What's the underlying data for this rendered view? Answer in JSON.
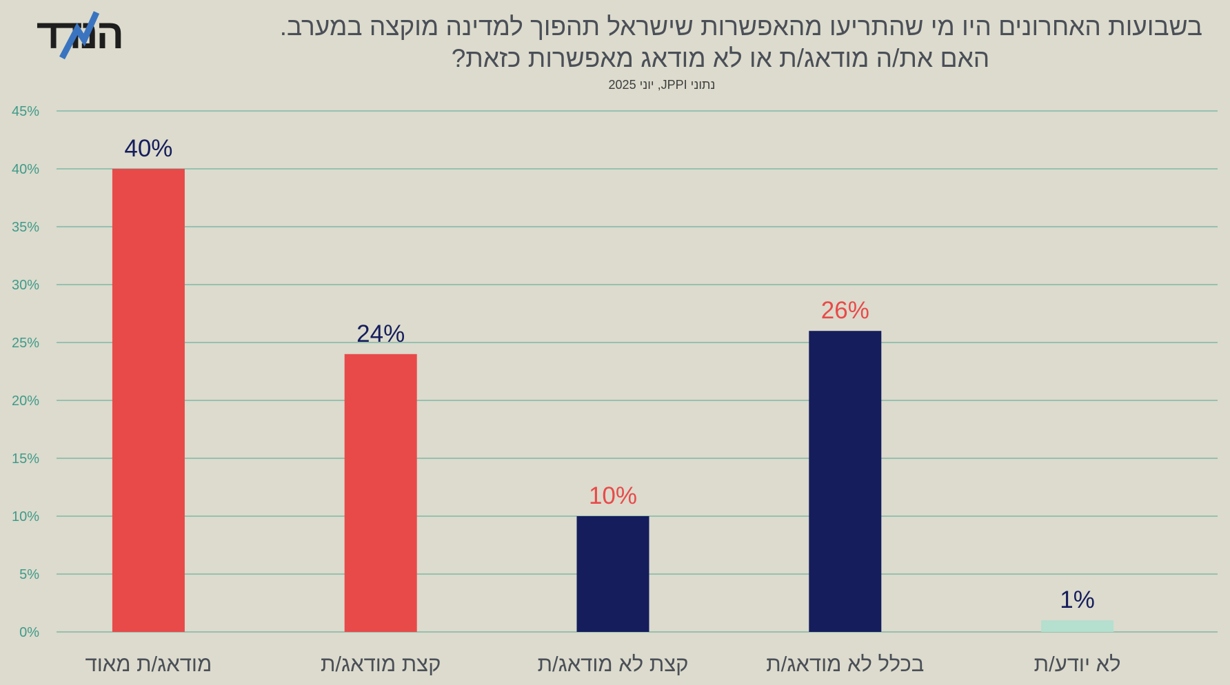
{
  "logo": {
    "text": "הנדד",
    "accent_color": "#3a74c0"
  },
  "title_line1": "בשבועות האחרונים היו מי שהתריעו מהאפשרות שישראל תהפוך למדינה מוקצה במערב.",
  "title_line2": "האם את/ה מודאג/ת או לא מודאג מאפשרות כזאת?",
  "subtitle": "נתוני JPPI, יוני 2025",
  "colors": {
    "background": "#dcdbcd",
    "grid": "#7fb7a6",
    "tick_label": "#3f9a8a",
    "red": "#e84a4a",
    "navy": "#151d5c",
    "mint": "#b5dfcf",
    "category_label": "#4a4f57"
  },
  "chart_data": {
    "type": "bar",
    "categories": [
      "מודאג/ת מאוד",
      "קצת מודאג/ת",
      "קצת לא מודאג/ת",
      "בכלל לא מודאג/ת",
      "לא יודע/ת"
    ],
    "values": [
      40,
      24,
      10,
      26,
      1
    ],
    "data_labels": [
      "40%",
      "24%",
      "10%",
      "26%",
      "1%"
    ],
    "bar_colors": [
      "#e84a4a",
      "#e84a4a",
      "#151d5c",
      "#151d5c",
      "#b5dfcf"
    ],
    "label_colors": [
      "#151d5c",
      "#151d5c",
      "#e84a4a",
      "#e84a4a",
      "#151d5c"
    ],
    "ylim": [
      0,
      45
    ],
    "yticks": [
      0,
      5,
      10,
      15,
      20,
      25,
      30,
      35,
      40,
      45
    ],
    "ytick_labels": [
      "0%",
      "5%",
      "10%",
      "15%",
      "20%",
      "25%",
      "30%",
      "35%",
      "40%",
      "45%"
    ],
    "xlabel": "",
    "ylabel": "",
    "grid": true,
    "legend": false
  }
}
